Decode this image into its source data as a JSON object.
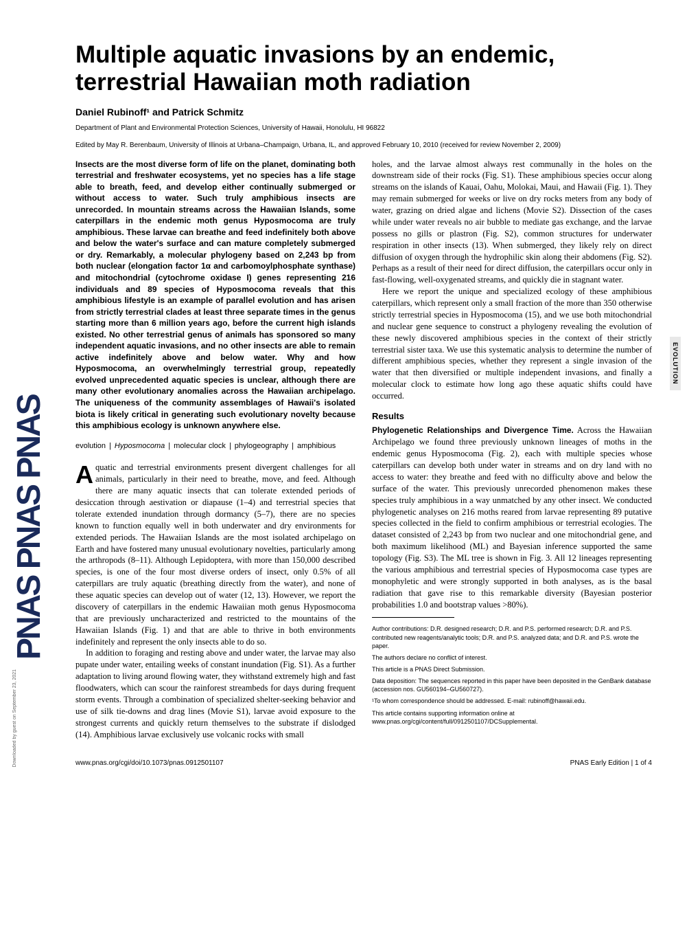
{
  "journal": {
    "logo_text": "PNAS PNAS PNAS",
    "side_label": "EVOLUTION"
  },
  "article": {
    "title": "Multiple aquatic invasions by an endemic, terrestrial Hawaiian moth radiation",
    "authors": "Daniel Rubinoff¹ and Patrick Schmitz",
    "affiliation": "Department of Plant and Environmental Protection Sciences, University of Hawaii, Honolulu, HI 96822",
    "edited_by": "Edited by May R. Berenbaum, University of Illinois at Urbana–Champaign, Urbana, IL, and approved February 10, 2010 (received for review November 2, 2009)",
    "abstract": "Insects are the most diverse form of life on the planet, dominating both terrestrial and freshwater ecosystems, yet no species has a life stage able to breath, feed, and develop either continually submerged or without access to water. Such truly amphibious insects are unrecorded. In mountain streams across the Hawaiian Islands, some caterpillars in the endemic moth genus Hyposmocoma are truly amphibious. These larvae can breathe and feed indefinitely both above and below the water's surface and can mature completely submerged or dry. Remarkably, a molecular phylogeny based on 2,243 bp from both nuclear (elongation factor 1α and carbomoylphosphate synthase) and mitochondrial (cytochrome oxidase I) genes representing 216 individuals and 89 species of Hyposmocoma reveals that this amphibious lifestyle is an example of parallel evolution and has arisen from strictly terrestrial clades at least three separate times in the genus starting more than 6 million years ago, before the current high islands existed. No other terrestrial genus of animals has sponsored so many independent aquatic invasions, and no other insects are able to remain active indefinitely above and below water. Why and how Hyposmocoma, an overwhelmingly terrestrial group, repeatedly evolved unprecedented aquatic species is unclear, although there are many other evolutionary anomalies across the Hawaiian archipelago. The uniqueness of the community assemblages of Hawaii's isolated biota is likely critical in generating such evolutionary novelty because this amphibious ecology is unknown anywhere else.",
    "keywords": [
      "evolution",
      "Hyposmocoma",
      "molecular clock",
      "phylogeography",
      "amphibious"
    ],
    "body_p1": "quatic and terrestrial environments present divergent challenges for all animals, particularly in their need to breathe, move, and feed. Although there are many aquatic insects that can tolerate extended periods of desiccation through aestivation or diapause (1–4) and terrestrial species that tolerate extended inundation through dormancy (5–7), there are no species known to function equally well in both underwater and dry environments for extended periods. The Hawaiian Islands are the most isolated archipelago on Earth and have fostered many unusual evolutionary novelties, particularly among the arthropods (8–11). Although Lepidoptera, with more than 150,000 described species, is one of the four most diverse orders of insect, only 0.5% of all caterpillars are truly aquatic (breathing directly from the water), and none of these aquatic species can develop out of water (12, 13). However, we report the discovery of caterpillars in the endemic Hawaiian moth genus Hyposmocoma that are previously uncharacterized and restricted to the mountains of the Hawaiian Islands (Fig. 1) and that are able to thrive in both environments indefinitely and represent the only insects able to do so.",
    "body_p2": "In addition to foraging and resting above and under water, the larvae may also pupate under water, entailing weeks of constant inundation (Fig. S1). As a further adaptation to living around flowing water, they withstand extremely high and fast floodwaters, which can scour the rainforest streambeds for days during frequent storm events. Through a combination of specialized shelter-seeking behavior and use of silk tie-downs and drag lines (Movie S1), larvae avoid exposure to the strongest currents and quickly return themselves to the substrate if dislodged (14). Amphibious larvae exclusively use volcanic rocks with small ",
    "body_p3": "holes, and the larvae almost always rest communally in the holes on the downstream side of their rocks (Fig. S1). These amphibious species occur along streams on the islands of Kauai, Oahu, Molokai, Maui, and Hawaii (Fig. 1). They may remain submerged for weeks or live on dry rocks meters from any body of water, grazing on dried algae and lichens (Movie S2). Dissection of the cases while under water reveals no air bubble to mediate gas exchange, and the larvae possess no gills or plastron (Fig. S2), common structures for underwater respiration in other insects (13). When submerged, they likely rely on direct diffusion of oxygen through the hydrophilic skin along their abdomens (Fig. S2). Perhaps as a result of their need for direct diffusion, the caterpillars occur only in fast-flowing, well-oxygenated streams, and quickly die in stagnant water.",
    "body_p4": "Here we report the unique and specialized ecology of these amphibious caterpillars, which represent only a small fraction of the more than 350 otherwise strictly terrestrial species in Hyposmocoma (15), and we use both mitochondrial and nuclear gene sequence to construct a phylogeny revealing the evolution of these newly discovered amphibious species in the context of their strictly terrestrial sister taxa. We use this systematic analysis to determine the number of different amphibious species, whether they represent a single invasion of the water that then diversified or multiple independent invasions, and finally a molecular clock to estimate how long ago these aquatic shifts could have occurred.",
    "results_heading": "Results",
    "results_subheading": "Phylogenetic Relationships and Divergence Time.",
    "results_p1": " Across the Hawaiian Archipelago we found three previously unknown lineages of moths in the endemic genus Hyposmocoma (Fig. 2), each with multiple species whose caterpillars can develop both under water in streams and on dry land with no access to water: they breathe and feed with no difficulty above and below the surface of the water. This previously unrecorded phenomenon makes these species truly amphibious in a way unmatched by any other insect. We conducted phylogenetic analyses on 216 moths reared from larvae representing 89 putative species collected in the field to confirm amphibious or terrestrial ecologies. The dataset consisted of 2,243 bp from two nuclear and one mitochondrial gene, and both maximum likelihood (ML) and Bayesian inference supported the same topology (Fig. S3). The ML tree is shown in Fig. 3. All 12 lineages representing the various amphibious and terrestrial species of Hyposmocoma case types are monophyletic and were strongly supported in both analyses, as is the basal radiation that gave rise to this remarkable diversity (Bayesian posterior probabilities 1.0 and bootstrap values >80%).",
    "author_notes": {
      "contributions": "Author contributions: D.R. designed research; D.R. and P.S. performed research; D.R. and P.S. contributed new reagents/analytic tools; D.R. and P.S. analyzed data; and D.R. and P.S. wrote the paper.",
      "conflict": "The authors declare no conflict of interest.",
      "direct": "This article is a PNAS Direct Submission.",
      "data": "Data deposition: The sequences reported in this paper have been deposited in the GenBank database (accession nos. GU560194–GU560727).",
      "correspondence": "¹To whom correspondence should be addressed. E-mail: rubinoff@hawaii.edu.",
      "supporting": "This article contains supporting information online at www.pnas.org/cgi/content/full/0912501107/DCSupplemental."
    },
    "footer": {
      "doi": "www.pnas.org/cgi/doi/10.1073/pnas.0912501107",
      "page_info": "PNAS Early Edition | 1 of 4"
    },
    "download_note": "Downloaded by guest on September 23, 2021"
  }
}
